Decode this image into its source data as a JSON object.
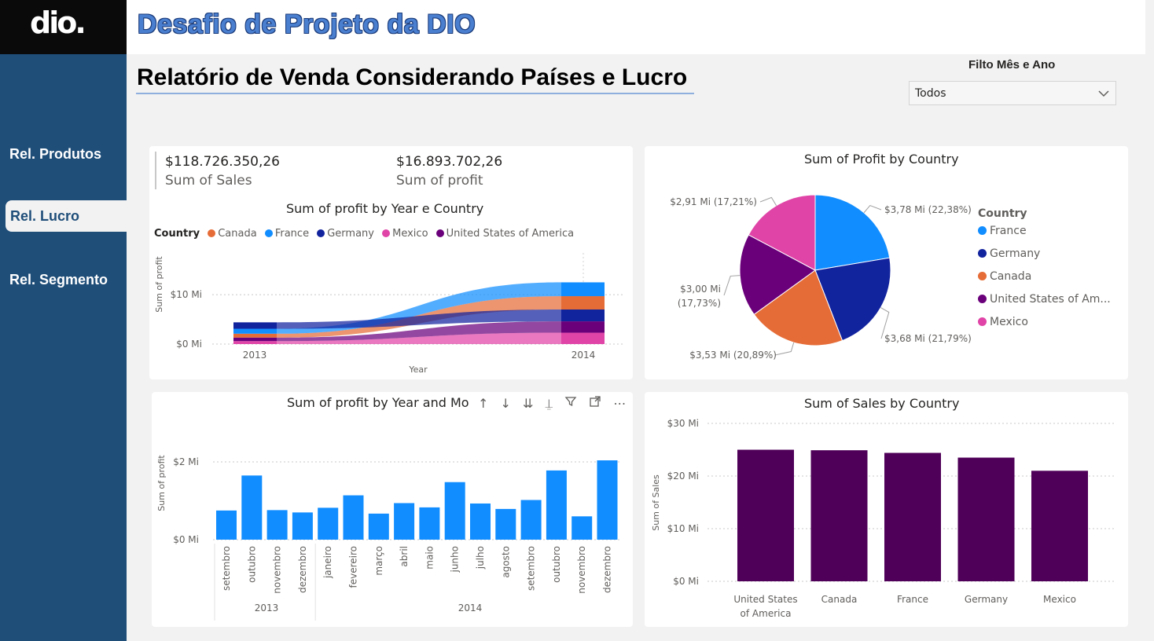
{
  "app": {
    "logo": "dio.",
    "title": "Desafio de Projeto da DIO",
    "subtitle": "Relatório de Venda Considerando Países e Lucro"
  },
  "sidebar": {
    "items": [
      {
        "label": "Rel. Produtos",
        "active": false
      },
      {
        "label": "Rel. Lucro",
        "active": true
      },
      {
        "label": "Rel. Segmento",
        "active": false
      }
    ]
  },
  "filter": {
    "label": "Filto Mês e Ano",
    "selected": "Todos"
  },
  "kpis": [
    {
      "value": "$118.726.350,26",
      "label": "Sum of Sales"
    },
    {
      "value": "$16.893.702,26",
      "label": "Sum of profit"
    }
  ],
  "colors": {
    "Canada": "#e66c37",
    "France": "#118dff",
    "Germany": "#12239e",
    "Mexico": "#e044a7",
    "United States of America": "#6b007b",
    "bar_blue": "#118dff",
    "bar_purple": "#4f0058"
  },
  "chart_data": [
    {
      "type": "area",
      "title": "Sum of profit by Year e Country",
      "xlabel": "Year",
      "ylabel": "Sum of profit",
      "legend_title": "Country",
      "legend_position": "top-left",
      "categories": [
        "2013",
        "2014"
      ],
      "yticks": [
        "$0 Mi",
        "$10 Mi"
      ],
      "ylim": [
        0,
        14
      ],
      "series": [
        {
          "name": "Canada",
          "values": [
            0.8,
            2.7
          ]
        },
        {
          "name": "France",
          "values": [
            1.0,
            2.8
          ]
        },
        {
          "name": "Germany",
          "values": [
            1.3,
            2.4
          ]
        },
        {
          "name": "Mexico",
          "values": [
            0.6,
            2.3
          ]
        },
        {
          "name": "United States of America",
          "values": [
            0.7,
            2.3
          ]
        }
      ]
    },
    {
      "type": "pie",
      "title": "Sum of Profit by Country",
      "legend_title": "Country",
      "legend_position": "right",
      "slices": [
        {
          "name": "France",
          "value": 3.78,
          "label": "$3,78 Mi (22,38%)"
        },
        {
          "name": "Germany",
          "value": 3.68,
          "label": "$3,68 Mi (21,79%)"
        },
        {
          "name": "Canada",
          "value": 3.53,
          "label": "$3,53 Mi (20,89%)"
        },
        {
          "name": "United States of America",
          "legend_label": "United States of Am...",
          "value": 3.0,
          "label_line1": "$3,00 Mi",
          "label_line2": "(17,73%)"
        },
        {
          "name": "Mexico",
          "value": 2.91,
          "label": "$2,91 Mi (17,21%)"
        }
      ]
    },
    {
      "type": "bar",
      "title": "Sum of profit by Year and Mo",
      "ylabel": "Sum of profit",
      "yticks": [
        "$0 Mi",
        "$2 Mi"
      ],
      "ylim": [
        0,
        2.4
      ],
      "years": [
        {
          "label": "2013",
          "months": [
            "setembro",
            "outubro",
            "novembro",
            "dezembro"
          ]
        },
        {
          "label": "2014",
          "months": [
            "janeiro",
            "fevereiro",
            "março",
            "abril",
            "maio",
            "junho",
            "julho",
            "agosto",
            "setembro",
            "outubro",
            "novembro",
            "dezembro"
          ]
        }
      ],
      "values": [
        0.75,
        1.65,
        0.76,
        0.7,
        0.82,
        1.14,
        0.67,
        0.94,
        0.83,
        1.48,
        0.93,
        0.79,
        1.02,
        1.78,
        0.6,
        2.04
      ]
    },
    {
      "type": "bar",
      "title": "Sum of Sales by Country",
      "ylabel": "Sum of Sales",
      "yticks": [
        "$0 Mi",
        "$10 Mi",
        "$20 Mi",
        "$30 Mi"
      ],
      "ylim": [
        0,
        30
      ],
      "categories": [
        "United States of America",
        "Canada",
        "France",
        "Germany",
        "Mexico"
      ],
      "category_lines": [
        [
          "United States",
          "of America"
        ],
        [
          "Canada"
        ],
        [
          "France"
        ],
        [
          "Germany"
        ],
        [
          "Mexico"
        ]
      ],
      "values": [
        25.0,
        24.9,
        24.4,
        23.5,
        21.0
      ]
    }
  ],
  "toolbar": {
    "icons": [
      "drill-up-icon",
      "drill-down-icon",
      "expand-all-icon",
      "expand-hierarchy-icon",
      "filter-icon",
      "focus-mode-icon",
      "more-options-icon"
    ]
  }
}
